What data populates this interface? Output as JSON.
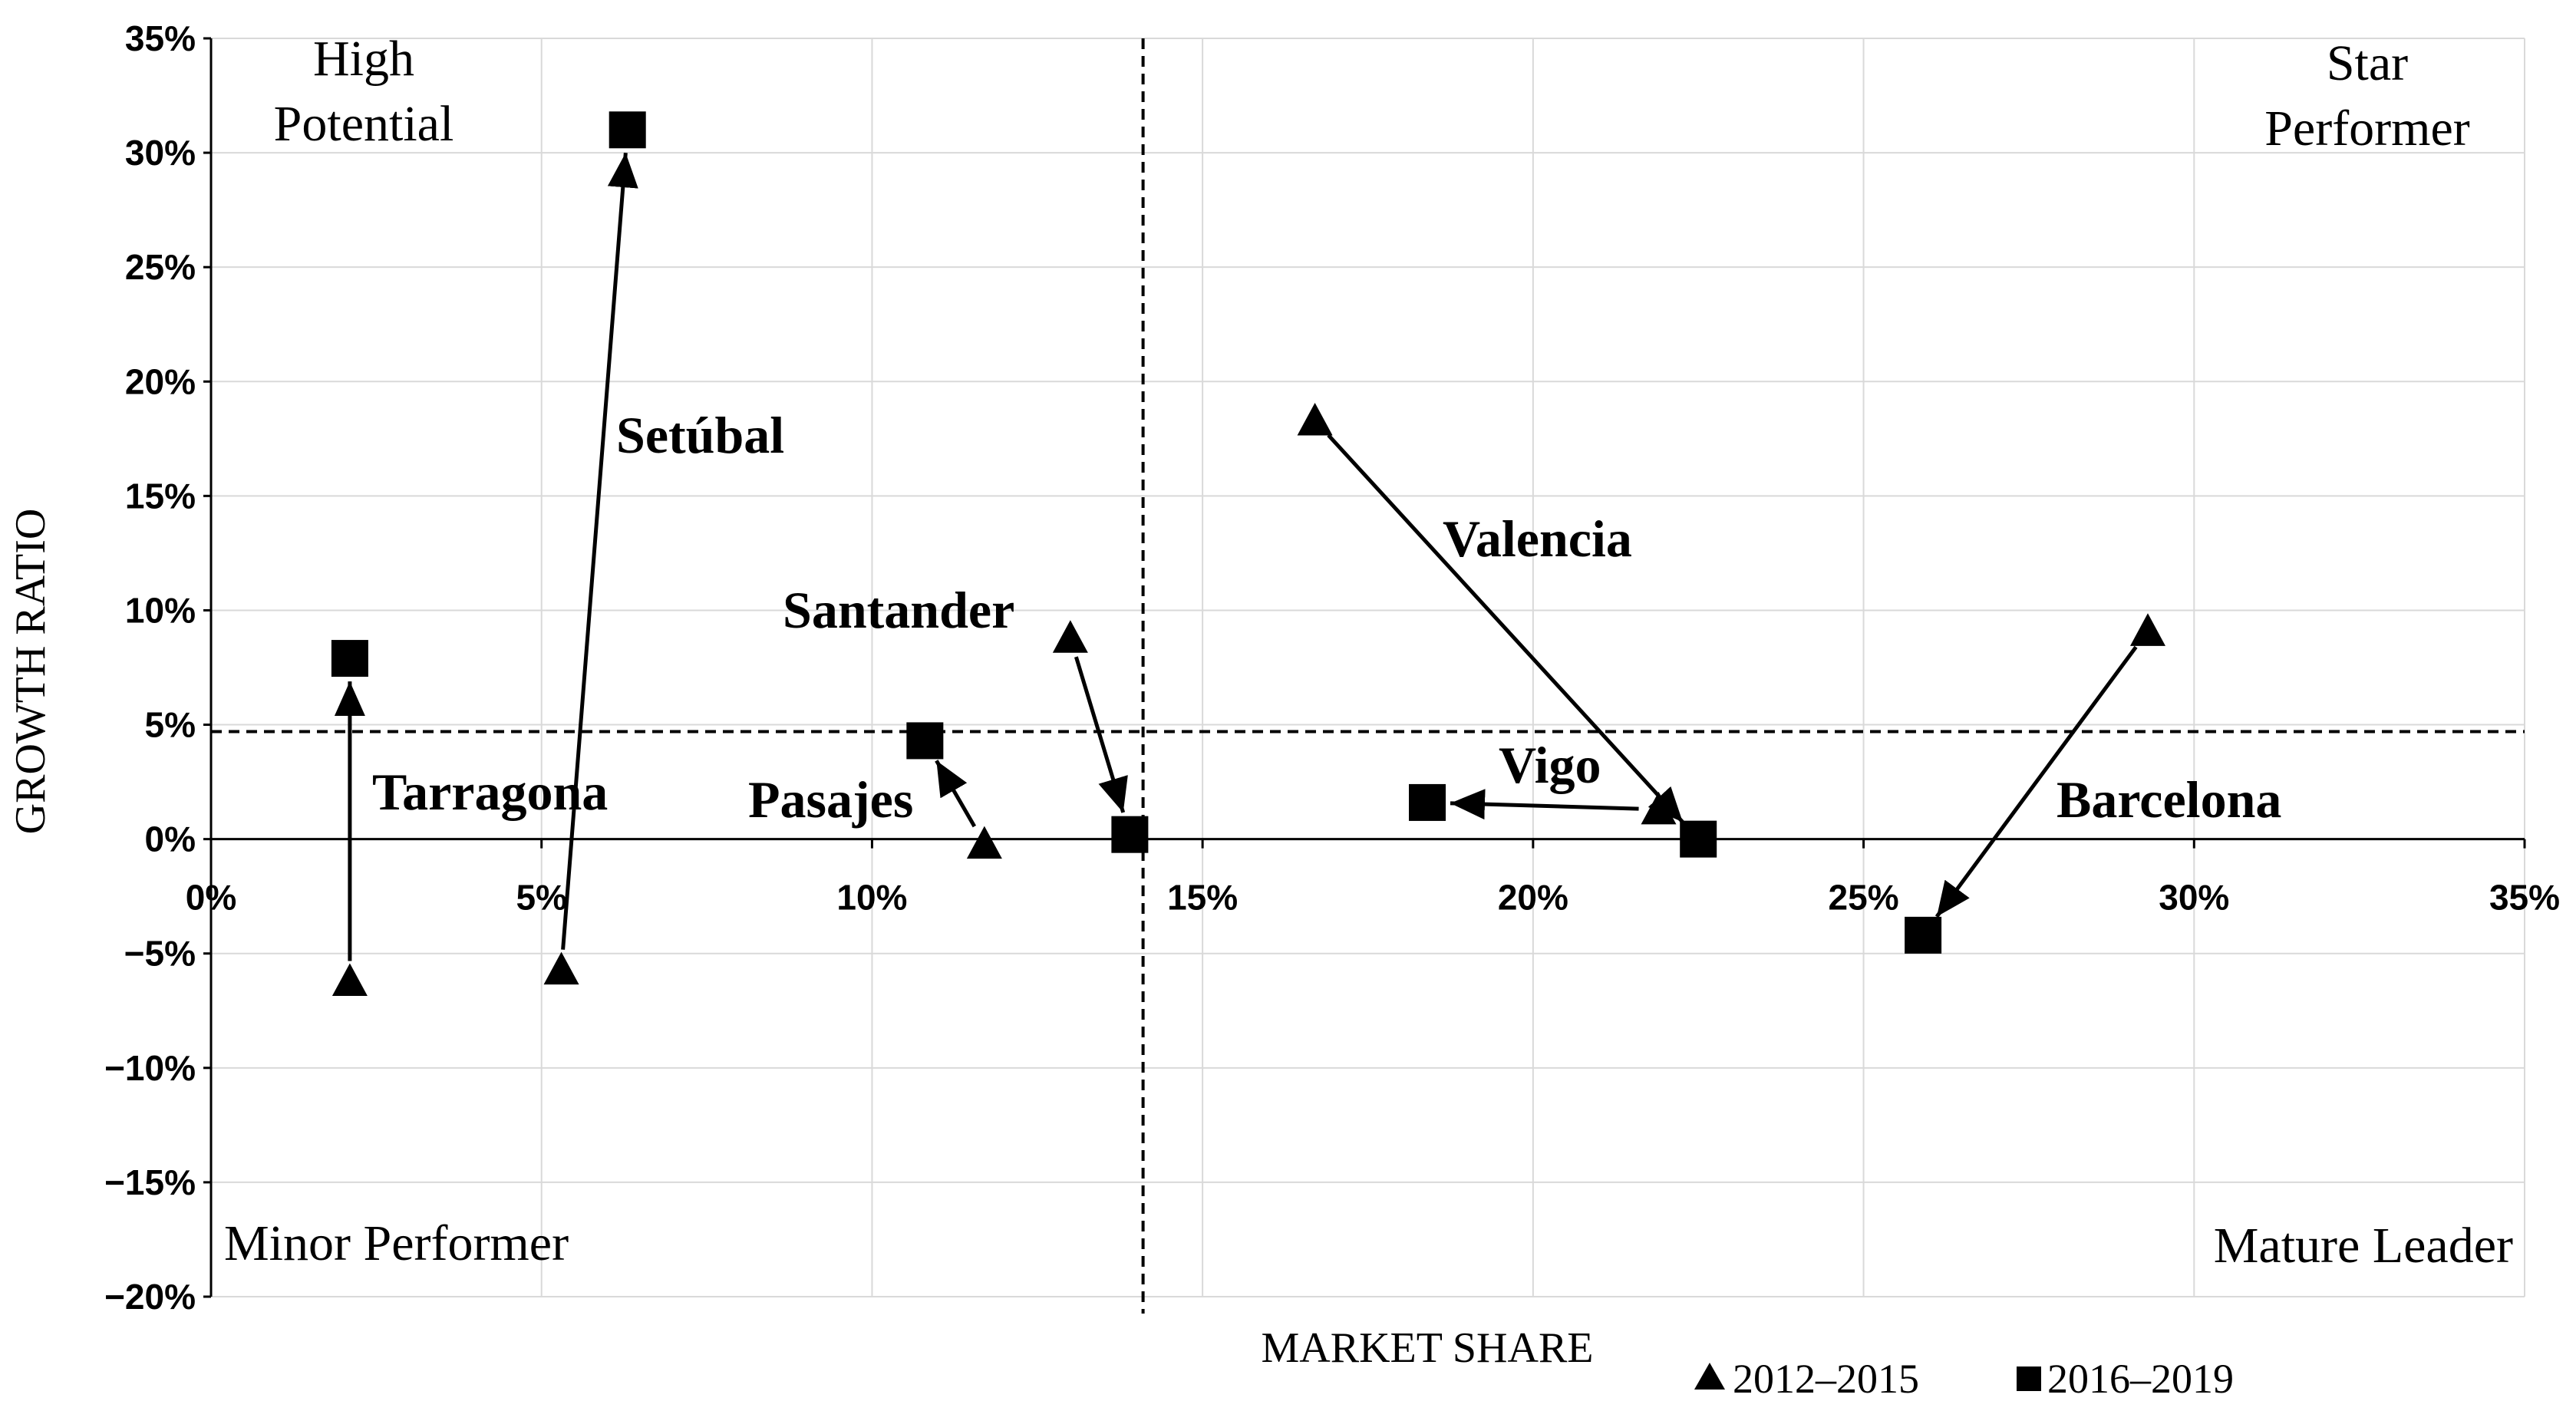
{
  "chart_data": {
    "type": "scatter",
    "xlabel": "MARKET SHARE",
    "ylabel": "GROWTH RATIO",
    "xlim": [
      0,
      35
    ],
    "ylim": [
      -20,
      35
    ],
    "x_ticks": [
      0,
      5,
      10,
      15,
      20,
      25,
      30,
      35
    ],
    "y_ticks": [
      35,
      30,
      25,
      20,
      15,
      10,
      5,
      0,
      -5,
      -10,
      -15,
      -20
    ],
    "x_tick_labels": [
      "0%",
      "5%",
      "10%",
      "15%",
      "20%",
      "25%",
      "30%",
      "35%"
    ],
    "y_tick_labels": [
      "35%",
      "30%",
      "25%",
      "20%",
      "15%",
      "10%",
      "5%",
      "0%",
      "−5%",
      "−10%",
      "−15%",
      "−20%"
    ],
    "grid": true,
    "reference_lines": {
      "x": 14.1,
      "y": 4.7
    },
    "quadrant_labels": {
      "top_left": [
        "High",
        "Potential"
      ],
      "top_right": [
        "Star",
        "Performer"
      ],
      "bottom_left": "Minor Performer",
      "bottom_right": "Mature Leader"
    },
    "series": [
      {
        "name": "2012–2015",
        "marker": "triangle"
      },
      {
        "name": "2016–2019",
        "marker": "square"
      }
    ],
    "ports": [
      {
        "name": "Tarragona",
        "p2012_2015": [
          2.1,
          -6.2
        ],
        "p2016_2019": [
          2.1,
          7.9
        ]
      },
      {
        "name": "Setúbal",
        "p2012_2015": [
          5.3,
          -5.7
        ],
        "p2016_2019": [
          6.3,
          31.0
        ]
      },
      {
        "name": "Pasajes",
        "p2012_2015": [
          11.7,
          -0.2
        ],
        "p2016_2019": [
          10.8,
          4.3
        ]
      },
      {
        "name": "Santander",
        "p2012_2015": [
          13.0,
          8.8
        ],
        "p2016_2019": [
          13.9,
          0.2
        ]
      },
      {
        "name": "Valencia",
        "p2012_2015": [
          16.7,
          18.3
        ],
        "p2016_2019": [
          22.5,
          0.0
        ]
      },
      {
        "name": "Vigo",
        "p2012_2015": [
          21.9,
          1.3
        ],
        "p2016_2019": [
          18.4,
          1.6
        ]
      },
      {
        "name": "Barcelona",
        "p2012_2015": [
          29.3,
          9.1
        ],
        "p2016_2019": [
          25.9,
          -4.2
        ]
      }
    ]
  }
}
